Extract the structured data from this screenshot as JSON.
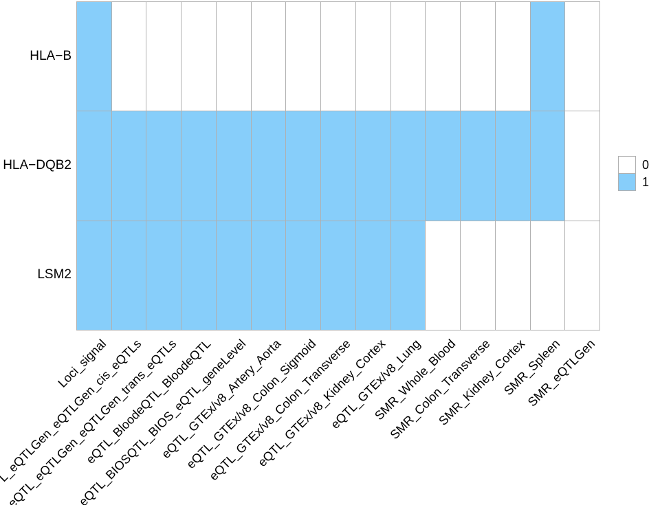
{
  "chart_data": {
    "type": "heatmap",
    "title": "",
    "xlabel": "",
    "ylabel": "",
    "rows": [
      "HLA−B",
      "HLA−DQB2",
      "LSM2"
    ],
    "columns": [
      "Loci_signal",
      "L_eQTLGen_eQTLGen_cis_eQTLs",
      "eQTL_eQTLGen_eQTLGen_trans_eQTLs",
      "eQTL_BloodeQTL_BloodeQTL",
      "eQTL_BIOSQTL_BIOS_eQTL_geneLevel",
      "eQTL_GTEx/v8_Artery_Aorta",
      "eQTL_GTEx/v8_Colon_Sigmoid",
      "eQTL_GTEx/v8_Colon_Transverse",
      "eQTL_GTEx/v8_Kidney_Cortex",
      "eQTL_GTEx/v8_Lung",
      "SMR_Whole_Blood",
      "SMR_Colon_Transverse",
      "SMR_Kidney_Cortex",
      "SMR_Spleen",
      "SMR_eQTLGen"
    ],
    "values": [
      [
        1,
        0,
        0,
        0,
        0,
        0,
        0,
        0,
        0,
        0,
        0,
        0,
        0,
        1,
        0
      ],
      [
        1,
        1,
        1,
        1,
        1,
        1,
        1,
        1,
        1,
        1,
        1,
        1,
        1,
        1,
        0
      ],
      [
        1,
        1,
        1,
        1,
        1,
        1,
        1,
        1,
        1,
        1,
        0,
        0,
        0,
        0,
        0
      ]
    ],
    "legend": [
      {
        "label": "0",
        "color": "#ffffff"
      },
      {
        "label": "1",
        "color": "#87cefa"
      }
    ],
    "colors": {
      "fill_one": "#87cefa",
      "fill_zero": "#ffffff",
      "grid": "#b0b0b0",
      "text": "#000000"
    },
    "layout": {
      "legend_position": "right-center",
      "x_tick_rotation_deg": 45,
      "grid_lines": true
    }
  }
}
